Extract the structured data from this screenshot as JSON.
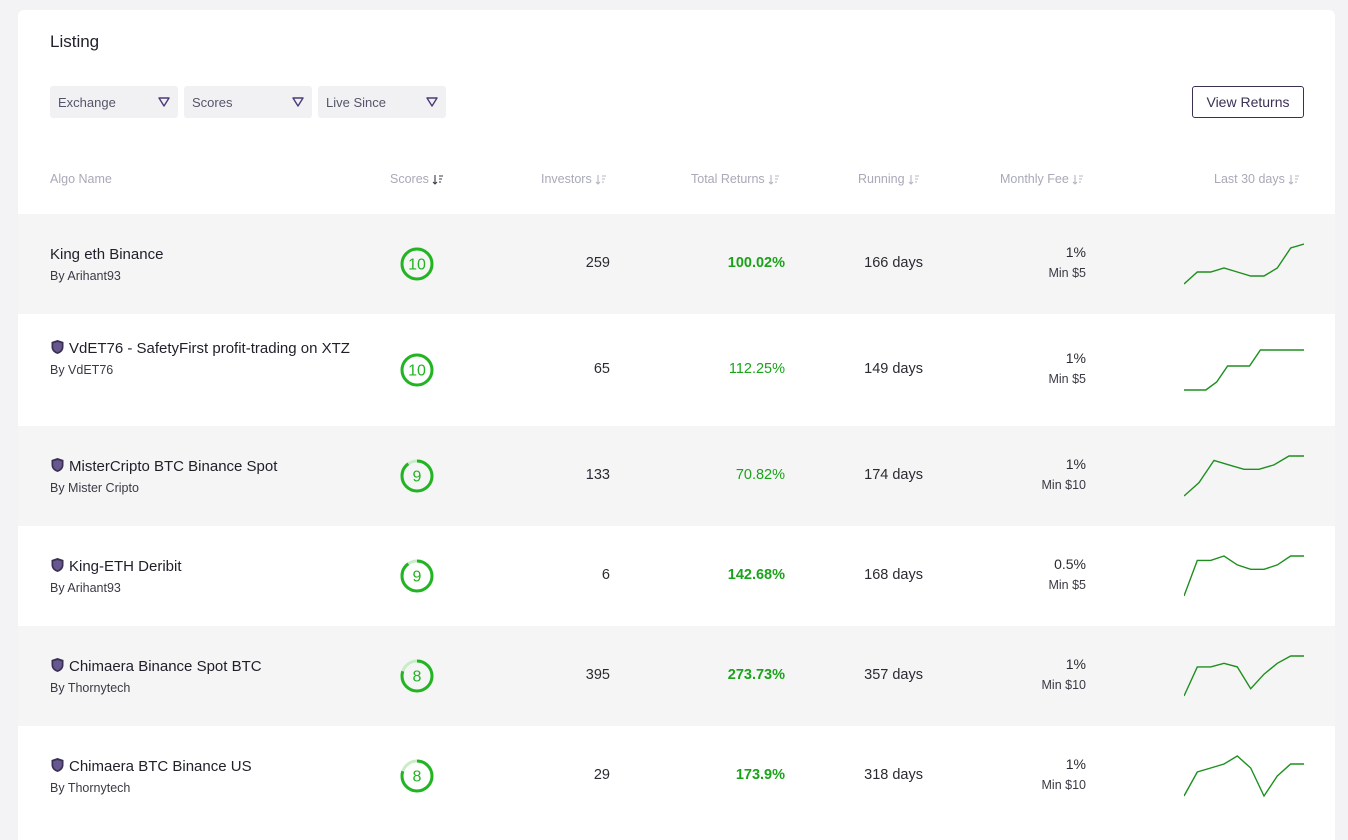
{
  "listing": {
    "title": "Listing",
    "filters": [
      {
        "label": "Exchange"
      },
      {
        "label": "Scores"
      },
      {
        "label": "Live Since"
      }
    ],
    "view_returns_label": "View Returns",
    "columns": {
      "algo_name": "Algo Name",
      "scores": "Scores",
      "investors": "Investors",
      "total_returns": "Total Returns",
      "running": "Running",
      "monthly_fee": "Monthly Fee",
      "last_30_days": "Last 30 days"
    },
    "colors": {
      "accent": "#3b2f55",
      "returns_green": "#1aa31a",
      "score_ring": "#22b422",
      "score_ring_track": "#c8eec8"
    },
    "rows": [
      {
        "name": "King eth Binance",
        "by": "By Arihant93",
        "verified": false,
        "score": "10",
        "score_fraction": 1.0,
        "investors": "259",
        "returns": "100.02%",
        "returns_bold": true,
        "running": "166 days",
        "fee": "1%",
        "min": "Min $5",
        "spark": [
          2,
          5,
          5,
          6,
          5,
          4,
          4,
          6,
          11,
          12
        ]
      },
      {
        "name": "VdET76 - SafetyFirst profit-trading on XTZ",
        "by": "By VdET76",
        "verified": true,
        "score": "10",
        "score_fraction": 1.0,
        "investors": "65",
        "returns": "112.25%",
        "returns_bold": false,
        "running": "149 days",
        "fee": "1%",
        "min": "Min $5",
        "spark": [
          0,
          0,
          0,
          2,
          6,
          6,
          6,
          10,
          10,
          10,
          10,
          10
        ]
      },
      {
        "name": "MisterCripto BTC Binance Spot",
        "by": "By Mister Cripto",
        "verified": true,
        "score": "9",
        "score_fraction": 0.9,
        "investors": "133",
        "returns": "70.82%",
        "returns_bold": false,
        "running": "174 days",
        "fee": "1%",
        "min": "Min $10",
        "spark": [
          0,
          3,
          8,
          7,
          6,
          6,
          7,
          9,
          9
        ]
      },
      {
        "name": "King-ETH Deribit",
        "by": "By Arihant93",
        "verified": true,
        "score": "9",
        "score_fraction": 0.9,
        "investors": "6",
        "returns": "142.68%",
        "returns_bold": true,
        "running": "168 days",
        "fee": "0.5%",
        "min": "Min $5",
        "spark": [
          0,
          8,
          8,
          9,
          7,
          6,
          6,
          7,
          9,
          9
        ]
      },
      {
        "name": "Chimaera Binance Spot BTC",
        "by": "By Thornytech",
        "verified": true,
        "score": "8",
        "score_fraction": 0.8,
        "investors": "395",
        "returns": "273.73%",
        "returns_bold": true,
        "running": "357 days",
        "fee": "1%",
        "min": "Min $10",
        "spark": [
          0,
          8,
          8,
          9,
          8,
          2,
          6,
          9,
          11,
          11
        ]
      },
      {
        "name": "Chimaera BTC Binance US",
        "by": "By Thornytech",
        "verified": true,
        "score": "8",
        "score_fraction": 0.8,
        "investors": "29",
        "returns": "173.9%",
        "returns_bold": true,
        "running": "318 days",
        "fee": "1%",
        "min": "Min $10",
        "spark": [
          0,
          6,
          7,
          8,
          10,
          7,
          0,
          5,
          8,
          8
        ]
      }
    ]
  }
}
